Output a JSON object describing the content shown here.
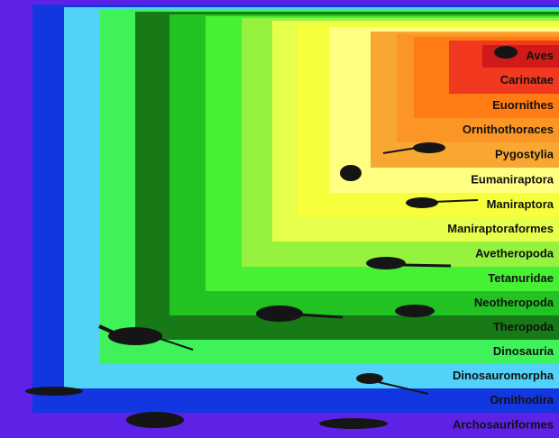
{
  "clades": [
    "Archosauriformes",
    "Ornithodira",
    "Dinosauromorpha",
    "Dinosauria",
    "Theropoda",
    "Neotheropoda",
    "Tetanuridae",
    "Avetheropoda",
    "Maniraptoraformes",
    "Maniraptora",
    "Eumaniraptora",
    "Pygostylia",
    "Ornithothoraces",
    "Euornithes",
    "Carinatae",
    "Aves"
  ]
}
